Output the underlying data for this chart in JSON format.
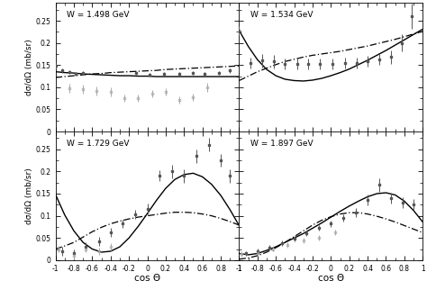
{
  "panels": [
    {
      "label": "W = 1.498 GeV",
      "ylim": [
        0,
        0.29
      ],
      "yticks": [
        0,
        0.05,
        0.1,
        0.15,
        0.2,
        0.25
      ],
      "solid_x": [
        -1.0,
        -0.9,
        -0.8,
        -0.7,
        -0.6,
        -0.5,
        -0.4,
        -0.3,
        -0.2,
        -0.1,
        0.0,
        0.1,
        0.2,
        0.3,
        0.4,
        0.5,
        0.6,
        0.7,
        0.8,
        0.9,
        1.0
      ],
      "solid_y": [
        0.135,
        0.133,
        0.132,
        0.13,
        0.129,
        0.128,
        0.127,
        0.126,
        0.126,
        0.125,
        0.125,
        0.124,
        0.124,
        0.124,
        0.124,
        0.124,
        0.124,
        0.124,
        0.124,
        0.124,
        0.124
      ],
      "dash_x": [
        -1.0,
        -0.9,
        -0.8,
        -0.7,
        -0.6,
        -0.5,
        -0.4,
        -0.3,
        -0.2,
        -0.1,
        0.0,
        0.1,
        0.2,
        0.3,
        0.4,
        0.5,
        0.6,
        0.7,
        0.8,
        0.9,
        1.0
      ],
      "dash_y": [
        0.122,
        0.124,
        0.126,
        0.128,
        0.13,
        0.131,
        0.133,
        0.134,
        0.135,
        0.136,
        0.137,
        0.138,
        0.14,
        0.141,
        0.142,
        0.143,
        0.144,
        0.145,
        0.146,
        0.147,
        0.148
      ],
      "data1_x": [
        -1.0,
        -0.93,
        -0.85,
        -0.78,
        -0.7,
        -0.12,
        0.02,
        0.18,
        0.35,
        0.5,
        0.62,
        0.78,
        0.9
      ],
      "data1_y": [
        0.148,
        0.138,
        0.134,
        0.13,
        0.132,
        0.132,
        0.128,
        0.13,
        0.13,
        0.132,
        0.13,
        0.132,
        0.138
      ],
      "data1_yerr": [
        0.006,
        0.005,
        0.004,
        0.004,
        0.004,
        0.004,
        0.004,
        0.004,
        0.004,
        0.004,
        0.004,
        0.004,
        0.005
      ],
      "data2_x": [
        -0.85,
        -0.7,
        -0.55,
        -0.4,
        -0.25,
        -0.1,
        0.05,
        0.2,
        0.35,
        0.5,
        0.65
      ],
      "data2_y": [
        0.098,
        0.095,
        0.092,
        0.09,
        0.075,
        0.075,
        0.085,
        0.09,
        0.072,
        0.078,
        0.1
      ],
      "data2_yerr": [
        0.01,
        0.01,
        0.01,
        0.01,
        0.008,
        0.008,
        0.008,
        0.008,
        0.008,
        0.008,
        0.01
      ]
    },
    {
      "label": "W = 1.534 GeV",
      "ylim": [
        0,
        0.29
      ],
      "yticks": [
        0,
        0.05,
        0.1,
        0.15,
        0.2,
        0.25
      ],
      "solid_x": [
        -1.0,
        -0.9,
        -0.8,
        -0.7,
        -0.6,
        -0.5,
        -0.4,
        -0.3,
        -0.2,
        -0.1,
        0.0,
        0.1,
        0.2,
        0.3,
        0.4,
        0.5,
        0.6,
        0.7,
        0.8,
        0.9,
        1.0
      ],
      "solid_y": [
        0.228,
        0.192,
        0.162,
        0.14,
        0.126,
        0.118,
        0.115,
        0.114,
        0.116,
        0.12,
        0.126,
        0.133,
        0.141,
        0.151,
        0.161,
        0.172,
        0.183,
        0.195,
        0.207,
        0.219,
        0.231
      ],
      "dash_x": [
        -1.0,
        -0.9,
        -0.8,
        -0.7,
        -0.6,
        -0.5,
        -0.4,
        -0.3,
        -0.2,
        -0.1,
        0.0,
        0.1,
        0.2,
        0.3,
        0.4,
        0.5,
        0.6,
        0.7,
        0.8,
        0.9,
        1.0
      ],
      "dash_y": [
        0.115,
        0.125,
        0.135,
        0.143,
        0.151,
        0.158,
        0.163,
        0.168,
        0.172,
        0.175,
        0.178,
        0.181,
        0.185,
        0.189,
        0.193,
        0.198,
        0.203,
        0.208,
        0.214,
        0.22,
        0.226
      ],
      "data1_x": [
        -1.0,
        -0.88,
        -0.75,
        -0.62,
        -0.5,
        -0.37,
        -0.25,
        -0.12,
        0.02,
        0.15,
        0.28,
        0.4,
        0.53,
        0.65,
        0.77,
        0.88
      ],
      "data1_y": [
        0.228,
        0.155,
        0.16,
        0.158,
        0.152,
        0.153,
        0.153,
        0.152,
        0.153,
        0.154,
        0.155,
        0.158,
        0.162,
        0.168,
        0.2,
        0.26
      ],
      "data1_yerr": [
        0.01,
        0.012,
        0.015,
        0.015,
        0.012,
        0.012,
        0.012,
        0.012,
        0.012,
        0.012,
        0.012,
        0.012,
        0.012,
        0.015,
        0.02,
        0.028
      ],
      "data2_x": [],
      "data2_y": [],
      "data2_yerr": []
    },
    {
      "label": "W = 1.729 GeV",
      "ylim": [
        0,
        0.29
      ],
      "yticks": [
        0,
        0.05,
        0.1,
        0.15,
        0.2,
        0.25
      ],
      "solid_x": [
        -1.0,
        -0.9,
        -0.8,
        -0.7,
        -0.6,
        -0.5,
        -0.4,
        -0.3,
        -0.2,
        -0.1,
        0.0,
        0.1,
        0.2,
        0.3,
        0.4,
        0.5,
        0.6,
        0.7,
        0.8,
        0.9,
        1.0
      ],
      "solid_y": [
        0.148,
        0.102,
        0.066,
        0.04,
        0.025,
        0.018,
        0.02,
        0.03,
        0.05,
        0.076,
        0.105,
        0.135,
        0.162,
        0.182,
        0.193,
        0.196,
        0.188,
        0.171,
        0.146,
        0.114,
        0.078
      ],
      "dash_x": [
        -1.0,
        -0.9,
        -0.8,
        -0.7,
        -0.6,
        -0.5,
        -0.4,
        -0.3,
        -0.2,
        -0.1,
        0.0,
        0.1,
        0.2,
        0.3,
        0.4,
        0.5,
        0.6,
        0.7,
        0.8,
        0.9,
        1.0
      ],
      "dash_y": [
        0.025,
        0.032,
        0.04,
        0.052,
        0.064,
        0.074,
        0.082,
        0.088,
        0.093,
        0.097,
        0.1,
        0.103,
        0.106,
        0.108,
        0.108,
        0.107,
        0.104,
        0.1,
        0.094,
        0.087,
        0.079
      ],
      "data1_x": [
        -0.93,
        -0.8,
        -0.67,
        -0.53,
        -0.4,
        -0.27,
        -0.13,
        0.0,
        0.13,
        0.27,
        0.4,
        0.53,
        0.67,
        0.8,
        0.9
      ],
      "data1_y": [
        0.02,
        0.015,
        0.03,
        0.042,
        0.062,
        0.082,
        0.103,
        0.115,
        0.19,
        0.2,
        0.19,
        0.235,
        0.26,
        0.225,
        0.19
      ],
      "data1_yerr": [
        0.01,
        0.01,
        0.01,
        0.01,
        0.01,
        0.01,
        0.01,
        0.012,
        0.012,
        0.015,
        0.015,
        0.015,
        0.015,
        0.015,
        0.015
      ],
      "data2_x": [
        -0.97,
        -0.8,
        -0.67,
        -0.53,
        -0.4
      ],
      "data2_y": [
        0.025,
        0.01,
        0.025,
        0.02,
        0.03
      ],
      "data2_yerr": [
        0.008,
        0.008,
        0.008,
        0.008,
        0.008
      ]
    },
    {
      "label": "W = 1.897 GeV",
      "ylim": [
        0,
        0.29
      ],
      "yticks": [
        0,
        0.05,
        0.1,
        0.15,
        0.2,
        0.25
      ],
      "solid_x": [
        -1.0,
        -0.9,
        -0.8,
        -0.7,
        -0.6,
        -0.5,
        -0.4,
        -0.3,
        -0.2,
        -0.1,
        0.0,
        0.1,
        0.2,
        0.3,
        0.4,
        0.5,
        0.6,
        0.7,
        0.8,
        0.9,
        1.0
      ],
      "solid_y": [
        0.015,
        0.012,
        0.015,
        0.022,
        0.03,
        0.04,
        0.05,
        0.06,
        0.072,
        0.084,
        0.097,
        0.11,
        0.122,
        0.133,
        0.143,
        0.15,
        0.152,
        0.147,
        0.133,
        0.112,
        0.086
      ],
      "dash_x": [
        -1.0,
        -0.9,
        -0.8,
        -0.7,
        -0.6,
        -0.5,
        -0.4,
        -0.3,
        -0.2,
        -0.1,
        0.0,
        0.1,
        0.2,
        0.3,
        0.4,
        0.5,
        0.6,
        0.7,
        0.8,
        0.9,
        1.0
      ],
      "dash_y": [
        0.002,
        0.005,
        0.01,
        0.018,
        0.028,
        0.04,
        0.053,
        0.066,
        0.079,
        0.09,
        0.098,
        0.104,
        0.107,
        0.107,
        0.104,
        0.099,
        0.093,
        0.086,
        0.078,
        0.07,
        0.062
      ],
      "data1_x": [
        -0.93,
        -0.8,
        -0.67,
        -0.53,
        -0.4,
        -0.27,
        -0.13,
        0.0,
        0.13,
        0.27,
        0.4,
        0.53,
        0.65,
        0.78,
        0.9
      ],
      "data1_y": [
        0.015,
        0.02,
        0.028,
        0.038,
        0.048,
        0.06,
        0.072,
        0.082,
        0.095,
        0.108,
        0.135,
        0.17,
        0.14,
        0.13,
        0.125
      ],
      "data1_yerr": [
        0.006,
        0.006,
        0.006,
        0.006,
        0.006,
        0.006,
        0.006,
        0.008,
        0.008,
        0.01,
        0.012,
        0.015,
        0.012,
        0.012,
        0.012
      ],
      "data2_x": [
        -0.97,
        -0.8,
        -0.63,
        -0.47,
        -0.3,
        -0.13,
        0.05
      ],
      "data2_y": [
        0.013,
        0.016,
        0.025,
        0.035,
        0.044,
        0.05,
        0.062
      ],
      "data2_yerr": [
        0.006,
        0.006,
        0.006,
        0.006,
        0.006,
        0.006,
        0.006
      ]
    }
  ],
  "ylabel": "dσ/dΩ (mb/sr)",
  "xlabel": "cos Θ",
  "solid_color": "black",
  "dash_color": "black",
  "data1_color": "#555555",
  "data2_color": "#aaaaaa",
  "background": "white"
}
